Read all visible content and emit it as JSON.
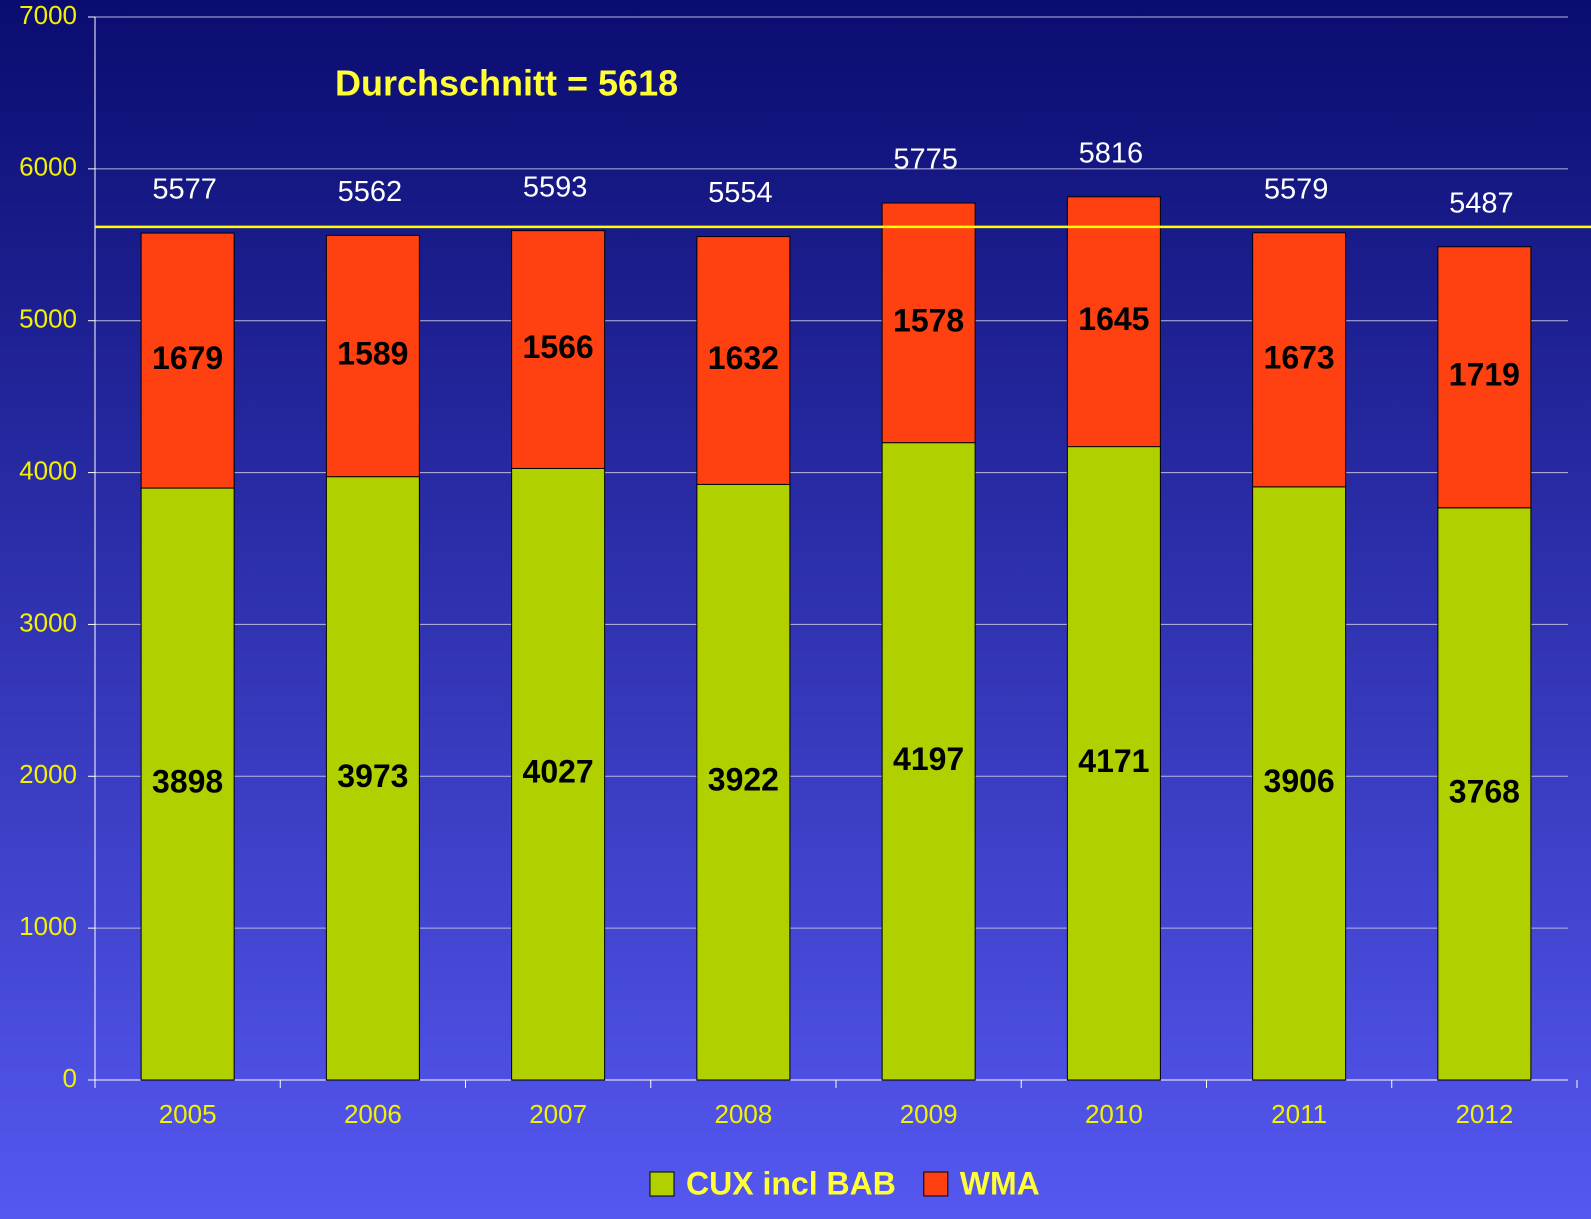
{
  "chart_data": {
    "type": "stacked_bar",
    "annotation": "Durchschnitt = 5618",
    "average_line": 5618,
    "average_color": "#ffff00",
    "categories": [
      "2005",
      "2006",
      "2007",
      "2008",
      "2009",
      "2010",
      "2011",
      "2012"
    ],
    "series": [
      {
        "name": "CUX incl BAB",
        "color": "#b0d000",
        "values": [
          3898,
          3973,
          4027,
          3922,
          4197,
          4171,
          3906,
          3768
        ]
      },
      {
        "name": "WMA",
        "color": "#ff4010",
        "values": [
          1679,
          1589,
          1566,
          1632,
          1578,
          1645,
          1673,
          1719
        ]
      }
    ],
    "totals": [
      5577,
      5562,
      5593,
      5554,
      5775,
      5816,
      5579,
      5487
    ],
    "ylim": [
      0,
      7000
    ],
    "yticks": [
      0,
      1000,
      2000,
      3000,
      4000,
      5000,
      6000,
      7000
    ],
    "grid": true
  }
}
